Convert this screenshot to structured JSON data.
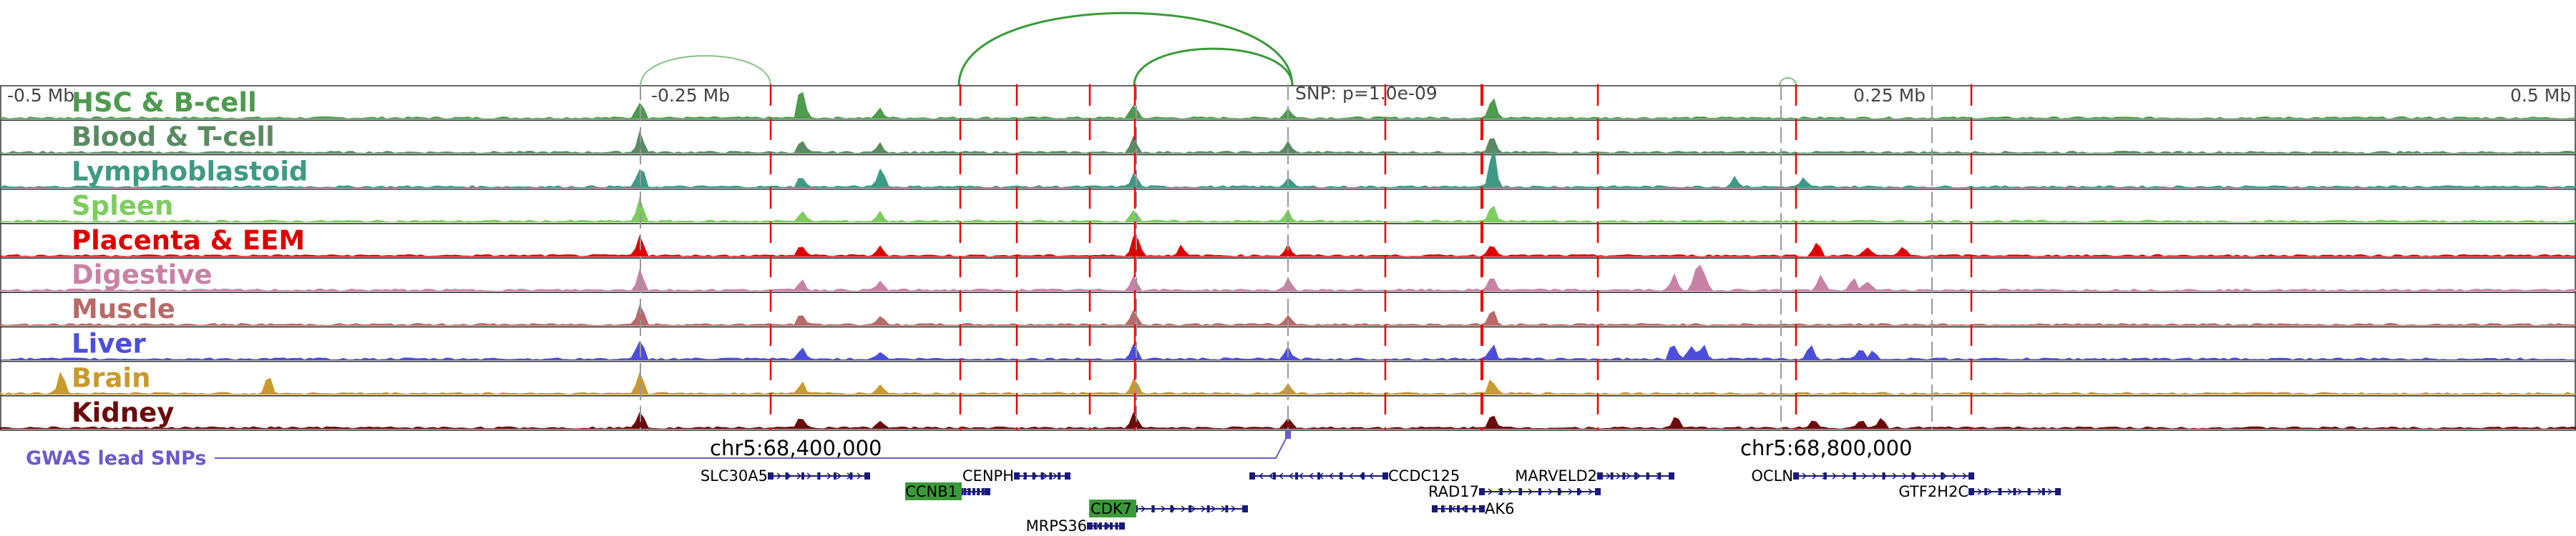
{
  "axis": {
    "left": "-0.5 Mb",
    "mid_left": "-0.25 Mb",
    "mid_right": "0.25 Mb",
    "right": "0.5 Mb"
  },
  "snp_annotation": "SNP: p=1.0e-09",
  "tracks": [
    {
      "label": "HSC & B-cell",
      "color": "#4e9a4e"
    },
    {
      "label": "Blood & T-cell",
      "color": "#5b8a62"
    },
    {
      "label": "Lymphoblastoid",
      "color": "#3e9a85"
    },
    {
      "label": "Spleen",
      "color": "#7ccd5e"
    },
    {
      "label": "Placenta & EEM",
      "color": "#dd0000"
    },
    {
      "label": "Digestive",
      "color": "#c981a6"
    },
    {
      "label": "Muscle",
      "color": "#b86a68"
    },
    {
      "label": "Liver",
      "color": "#4d4ddc"
    },
    {
      "label": "Brain",
      "color": "#c99a2e"
    },
    {
      "label": "Kidney",
      "color": "#6b0b0b"
    }
  ],
  "gwas_label": "GWAS lead SNPs",
  "coordinates": [
    "chr5:68,400,000",
    "chr5:68,800,000"
  ],
  "genes": [
    {
      "name": "SLC30A5",
      "highlight": false,
      "strand": "+"
    },
    {
      "name": "CENPH",
      "highlight": false,
      "strand": "+"
    },
    {
      "name": "CCNB1",
      "highlight": true,
      "strand": "+"
    },
    {
      "name": "CDK7",
      "highlight": true,
      "strand": "+"
    },
    {
      "name": "MRPS36",
      "highlight": false,
      "strand": "+"
    },
    {
      "name": "CCDC125",
      "highlight": false,
      "strand": "-"
    },
    {
      "name": "RAD17",
      "highlight": false,
      "strand": "+"
    },
    {
      "name": "AK6",
      "highlight": false,
      "strand": "-"
    },
    {
      "name": "MARVELD2",
      "highlight": false,
      "strand": "+"
    },
    {
      "name": "OCLN",
      "highlight": false,
      "strand": "+"
    },
    {
      "name": "GTF2H2C",
      "highlight": false,
      "strand": "+"
    }
  ],
  "colors": {
    "arc": "#3a9a3a",
    "arc_light": "#88c088",
    "red_line": "#ee0000",
    "gray_line": "#999999",
    "gene": "#1a1a7a",
    "gene_highlight_bg": "#3a9a3a",
    "gwas": "#6a5acd"
  }
}
